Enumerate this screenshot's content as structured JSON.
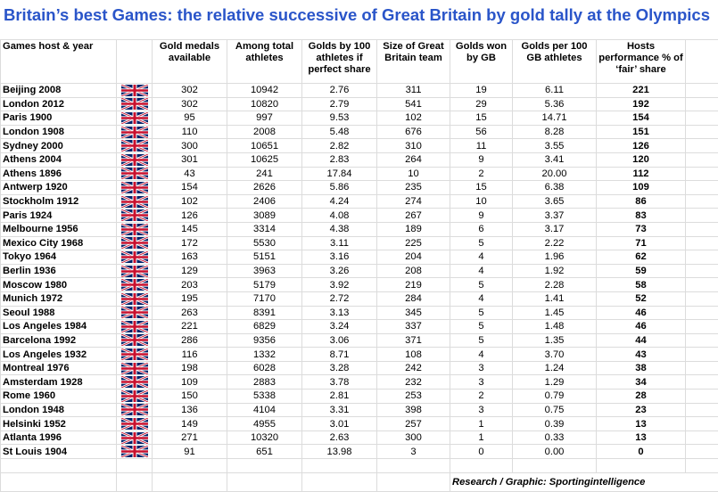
{
  "title": "Britain’s best Games: the relative successive of Great Britain by gold tally at the Olympics",
  "headers": {
    "host": "Games host & year",
    "gold_available": "Gold medals available",
    "athletes": "Among total athletes",
    "golds_per100": "Golds by 100 athletes if perfect share",
    "gb_team": "Size of Great Britain team",
    "golds_won": "Golds won by GB",
    "golds_per100_gb": "Golds per 100 GB athletes",
    "performance": "Hosts performance % of ‘fair’ share"
  },
  "flag_icon": "union-jack-flag-icon",
  "colors": {
    "title": "#2a55c9",
    "flag_blue": "#012169",
    "flag_red": "#C8102E"
  },
  "rows": [
    {
      "host": "Beijing 2008",
      "gold": "302",
      "athletes": "10942",
      "per100": "2.76",
      "team": "311",
      "won": "19",
      "gbper100": "6.11",
      "perf": "221"
    },
    {
      "host": "London 2012",
      "gold": "302",
      "athletes": "10820",
      "per100": "2.79",
      "team": "541",
      "won": "29",
      "gbper100": "5.36",
      "perf": "192"
    },
    {
      "host": "Paris 1900",
      "gold": "95",
      "athletes": "997",
      "per100": "9.53",
      "team": "102",
      "won": "15",
      "gbper100": "14.71",
      "perf": "154"
    },
    {
      "host": "London 1908",
      "gold": "110",
      "athletes": "2008",
      "per100": "5.48",
      "team": "676",
      "won": "56",
      "gbper100": "8.28",
      "perf": "151"
    },
    {
      "host": "Sydney 2000",
      "gold": "300",
      "athletes": "10651",
      "per100": "2.82",
      "team": "310",
      "won": "11",
      "gbper100": "3.55",
      "perf": "126"
    },
    {
      "host": "Athens 2004",
      "gold": "301",
      "athletes": "10625",
      "per100": "2.83",
      "team": "264",
      "won": "9",
      "gbper100": "3.41",
      "perf": "120"
    },
    {
      "host": "Athens 1896",
      "gold": "43",
      "athletes": "241",
      "per100": "17.84",
      "team": "10",
      "won": "2",
      "gbper100": "20.00",
      "perf": "112"
    },
    {
      "host": "Antwerp 1920",
      "gold": "154",
      "athletes": "2626",
      "per100": "5.86",
      "team": "235",
      "won": "15",
      "gbper100": "6.38",
      "perf": "109"
    },
    {
      "host": "Stockholm 1912",
      "gold": "102",
      "athletes": "2406",
      "per100": "4.24",
      "team": "274",
      "won": "10",
      "gbper100": "3.65",
      "perf": "86"
    },
    {
      "host": "Paris 1924",
      "gold": "126",
      "athletes": "3089",
      "per100": "4.08",
      "team": "267",
      "won": "9",
      "gbper100": "3.37",
      "perf": "83"
    },
    {
      "host": "Melbourne 1956",
      "gold": "145",
      "athletes": "3314",
      "per100": "4.38",
      "team": "189",
      "won": "6",
      "gbper100": "3.17",
      "perf": "73"
    },
    {
      "host": "Mexico City 1968",
      "gold": "172",
      "athletes": "5530",
      "per100": "3.11",
      "team": "225",
      "won": "5",
      "gbper100": "2.22",
      "perf": "71"
    },
    {
      "host": "Tokyo 1964",
      "gold": "163",
      "athletes": "5151",
      "per100": "3.16",
      "team": "204",
      "won": "4",
      "gbper100": "1.96",
      "perf": "62"
    },
    {
      "host": "Berlin 1936",
      "gold": "129",
      "athletes": "3963",
      "per100": "3.26",
      "team": "208",
      "won": "4",
      "gbper100": "1.92",
      "perf": "59"
    },
    {
      "host": "Moscow 1980",
      "gold": "203",
      "athletes": "5179",
      "per100": "3.92",
      "team": "219",
      "won": "5",
      "gbper100": "2.28",
      "perf": "58"
    },
    {
      "host": "Munich 1972",
      "gold": "195",
      "athletes": "7170",
      "per100": "2.72",
      "team": "284",
      "won": "4",
      "gbper100": "1.41",
      "perf": "52"
    },
    {
      "host": "Seoul 1988",
      "gold": "263",
      "athletes": "8391",
      "per100": "3.13",
      "team": "345",
      "won": "5",
      "gbper100": "1.45",
      "perf": "46"
    },
    {
      "host": "Los Angeles 1984",
      "gold": "221",
      "athletes": "6829",
      "per100": "3.24",
      "team": "337",
      "won": "5",
      "gbper100": "1.48",
      "perf": "46"
    },
    {
      "host": "Barcelona 1992",
      "gold": "286",
      "athletes": "9356",
      "per100": "3.06",
      "team": "371",
      "won": "5",
      "gbper100": "1.35",
      "perf": "44"
    },
    {
      "host": "Los Angeles 1932",
      "gold": "116",
      "athletes": "1332",
      "per100": "8.71",
      "team": "108",
      "won": "4",
      "gbper100": "3.70",
      "perf": "43"
    },
    {
      "host": "Montreal 1976",
      "gold": "198",
      "athletes": "6028",
      "per100": "3.28",
      "team": "242",
      "won": "3",
      "gbper100": "1.24",
      "perf": "38"
    },
    {
      "host": "Amsterdam 1928",
      "gold": "109",
      "athletes": "2883",
      "per100": "3.78",
      "team": "232",
      "won": "3",
      "gbper100": "1.29",
      "perf": "34"
    },
    {
      "host": "Rome 1960",
      "gold": "150",
      "athletes": "5338",
      "per100": "2.81",
      "team": "253",
      "won": "2",
      "gbper100": "0.79",
      "perf": "28"
    },
    {
      "host": "London 1948",
      "gold": "136",
      "athletes": "4104",
      "per100": "3.31",
      "team": "398",
      "won": "3",
      "gbper100": "0.75",
      "perf": "23"
    },
    {
      "host": "Helsinki 1952",
      "gold": "149",
      "athletes": "4955",
      "per100": "3.01",
      "team": "257",
      "won": "1",
      "gbper100": "0.39",
      "perf": "13"
    },
    {
      "host": "Atlanta 1996",
      "gold": "271",
      "athletes": "10320",
      "per100": "2.63",
      "team": "300",
      "won": "1",
      "gbper100": "0.33",
      "perf": "13"
    },
    {
      "host": "St Louis 1904",
      "gold": "91",
      "athletes": "651",
      "per100": "13.98",
      "team": "3",
      "won": "0",
      "gbper100": "0.00",
      "perf": "0"
    }
  ],
  "credit": "Research / Graphic: Sportingintelligence"
}
